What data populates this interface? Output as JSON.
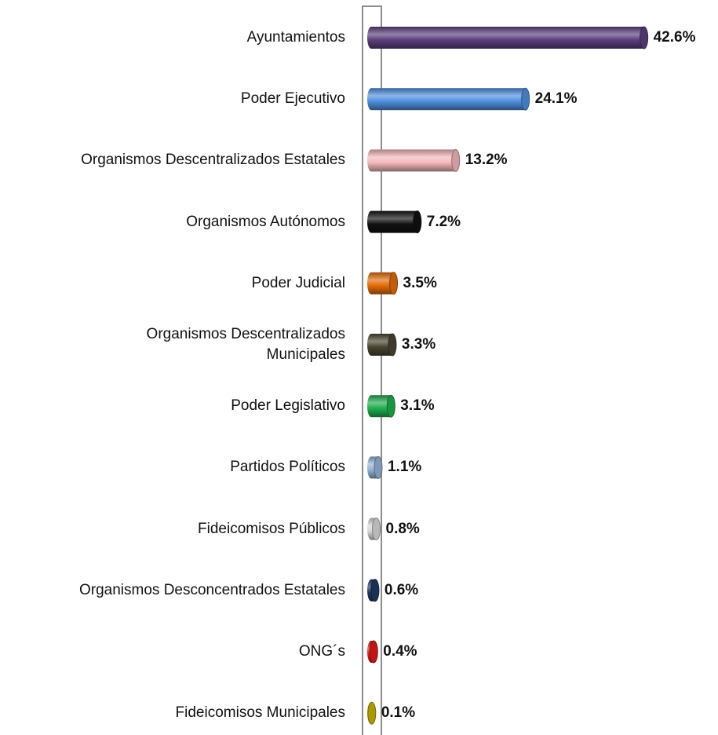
{
  "chart_data": {
    "type": "bar",
    "orientation": "horizontal",
    "categories": [
      "Ayuntamientos",
      "Poder Ejecutivo",
      "Organismos Descentralizados Estatales",
      "Organismos Autónomos",
      "Poder Judicial",
      "Organismos Descentralizados\nMunicipales",
      "Poder Legislativo",
      "Partidos Políticos",
      "Fideicomisos Públicos",
      "Organismos Desconcentrados Estatales",
      "ONG´s",
      "Fideicomisos Municipales"
    ],
    "values": [
      42.6,
      24.1,
      13.2,
      7.2,
      3.5,
      3.3,
      3.1,
      1.1,
      0.8,
      0.6,
      0.4,
      0.1
    ],
    "value_labels": [
      "42.6%",
      "24.1%",
      "13.2%",
      "7.2%",
      "3.5%",
      "3.3%",
      "3.1%",
      "1.1%",
      "0.8%",
      "0.6%",
      "0.4%",
      "0.1%"
    ],
    "colors": [
      "#5b3f7d",
      "#4f8fe0",
      "#f4b8bb",
      "#111111",
      "#e36c0a",
      "#4a4531",
      "#1fae4f",
      "#95b3d7",
      "#d9d9d9",
      "#1f3864",
      "#e31a1a",
      "#c8b400"
    ],
    "xlim": [
      0,
      50
    ]
  }
}
